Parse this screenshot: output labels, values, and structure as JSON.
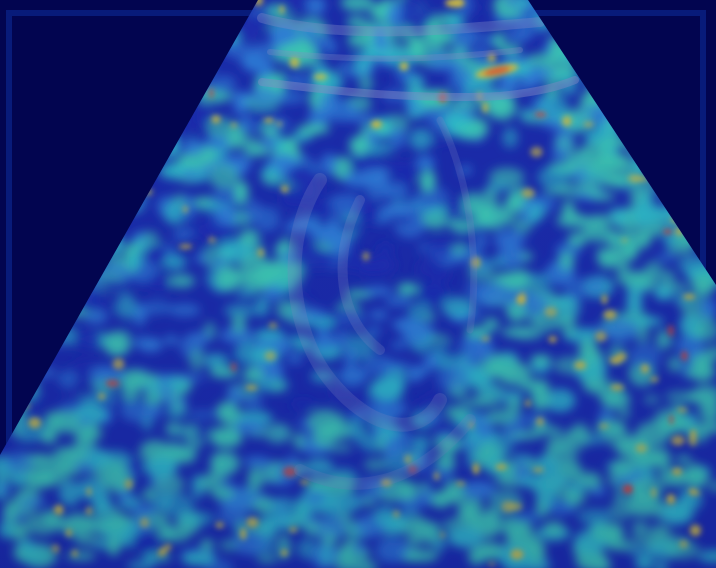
{
  "image": {
    "kind": "ultrasound-heatmap",
    "colors": {
      "background": "#020550",
      "sector_base": "#1a2aa8",
      "low": "#1b2cb0",
      "mid": "#2f7fd6",
      "cyan": "#2fc0c8",
      "teal": "#3fd0b0",
      "yellow": "#d8c23a",
      "red": "#e0402a",
      "gray_structure": "#8a8ec8"
    }
  }
}
